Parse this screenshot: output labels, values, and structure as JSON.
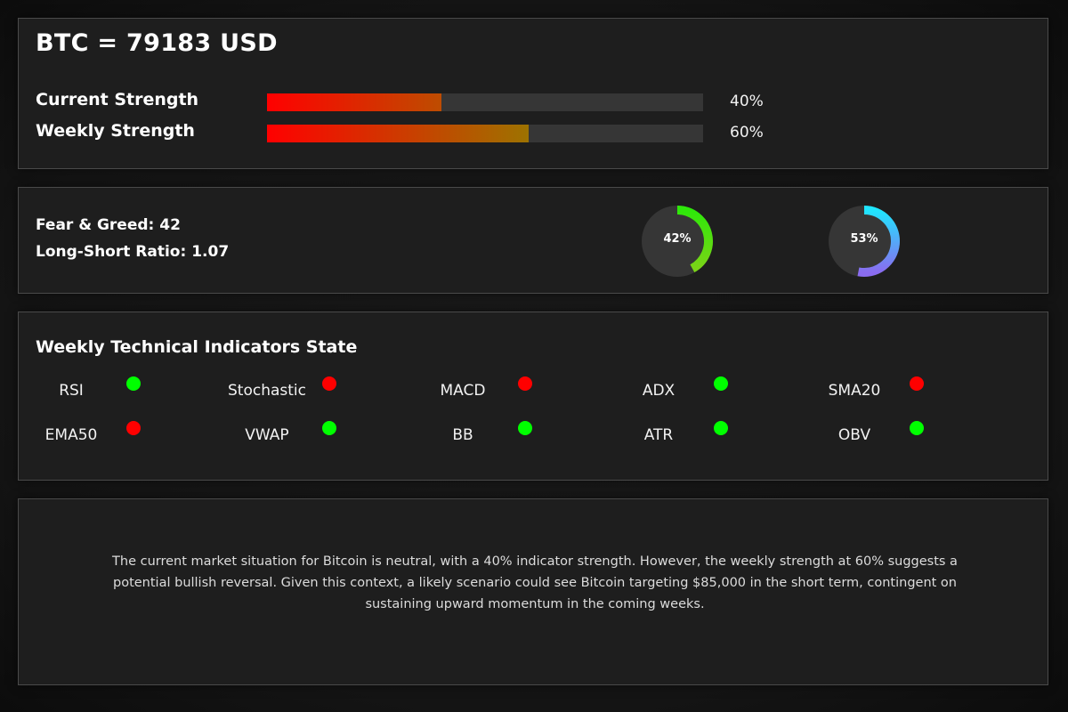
{
  "header": {
    "title": "BTC = 79183 USD"
  },
  "strength": {
    "current": {
      "label": "Current Strength",
      "value_text": "40%",
      "fraction": 0.4
    },
    "weekly": {
      "label": "Weekly Strength",
      "value_text": "60%",
      "fraction": 0.6
    }
  },
  "sentiment": {
    "fear_greed": "Fear & Greed: 42",
    "long_short": "Long-Short Ratio: 1.07",
    "gauges": [
      {
        "label": "42%",
        "fraction": 0.42,
        "color_start": "#2ee80a",
        "color_end": "#7ad417"
      },
      {
        "label": "53%",
        "fraction": 0.53,
        "color_start": "#1fe6ff",
        "color_end": "#8a6cf0"
      }
    ]
  },
  "indicators": {
    "title": "Weekly Technical Indicators State",
    "items": [
      {
        "name": "RSI",
        "state": "bullish"
      },
      {
        "name": "Stochastic",
        "state": "bearish"
      },
      {
        "name": "MACD",
        "state": "bearish"
      },
      {
        "name": "ADX",
        "state": "bullish"
      },
      {
        "name": "SMA20",
        "state": "bearish"
      },
      {
        "name": "EMA50",
        "state": "bearish"
      },
      {
        "name": "VWAP",
        "state": "bullish"
      },
      {
        "name": "BB",
        "state": "bullish"
      },
      {
        "name": "ATR",
        "state": "bullish"
      },
      {
        "name": "OBV",
        "state": "bullish"
      }
    ]
  },
  "colors": {
    "bullish": "#00ff00",
    "bearish": "#ff0000",
    "strength_start": "#ff0000",
    "strength_end": "#5cbf00"
  },
  "summary": {
    "text": "The current market situation for Bitcoin is neutral, with a 40% indicator strength. However, the weekly strength at 60% suggests a potential bullish reversal. Given this context, a likely scenario could see Bitcoin targeting $85,000 in the short term, contingent on sustaining upward momentum in the coming weeks."
  }
}
